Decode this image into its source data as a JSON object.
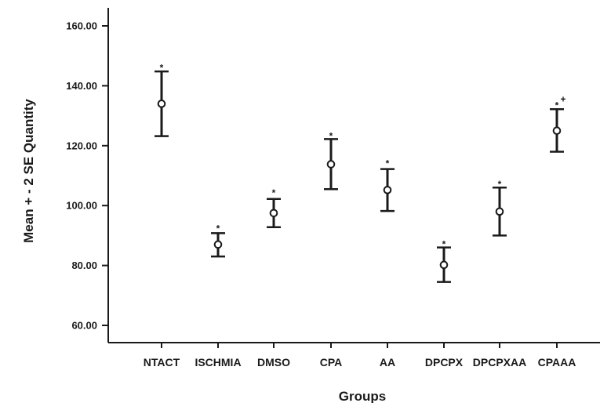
{
  "chart_data": {
    "type": "errorbar",
    "xlabel": "Groups",
    "ylabel": "Mean + - 2 SE Quantity",
    "ylim": [
      55,
      162
    ],
    "yticks": [
      60,
      80,
      100,
      120,
      140,
      160
    ],
    "ytick_labels": [
      "60.00",
      "80.00",
      "100.00",
      "120.00",
      "140.00",
      "160.00"
    ],
    "grid": false,
    "categories": [
      "NTACT",
      "ISCHMIA",
      "DMSO",
      "CPA",
      "AA",
      "DPCPX",
      "DPCPXAA",
      "CPAAA"
    ],
    "series": [
      {
        "mean": [
          134.0,
          87.0,
          97.5,
          113.8,
          105.2,
          80.2,
          98.0,
          125.0
        ],
        "lower": [
          123.2,
          83.0,
          92.8,
          105.5,
          98.2,
          74.5,
          90.0,
          118.0
        ],
        "upper": [
          144.8,
          90.8,
          102.2,
          122.2,
          112.2,
          86.0,
          106.0,
          132.2
        ]
      }
    ],
    "annotations": [
      {
        "category": "NTACT",
        "text": "*",
        "y": 146.5
      },
      {
        "category": "ISCHMIA",
        "text": "*",
        "y": 92.8
      },
      {
        "category": "DMSO",
        "text": "*",
        "y": 104.8
      },
      {
        "category": "CPA",
        "text": "*",
        "y": 123.8
      },
      {
        "category": "AA",
        "text": "*",
        "y": 114.6
      },
      {
        "category": "DPCPX",
        "text": "*",
        "y": 87.6
      },
      {
        "category": "DPCPXAA",
        "text": "*",
        "y": 107.7
      },
      {
        "category": "CPAAA",
        "text": "*",
        "y": 134.0
      },
      {
        "category": "CPAAA",
        "text": "+",
        "y": 136.0
      }
    ]
  }
}
